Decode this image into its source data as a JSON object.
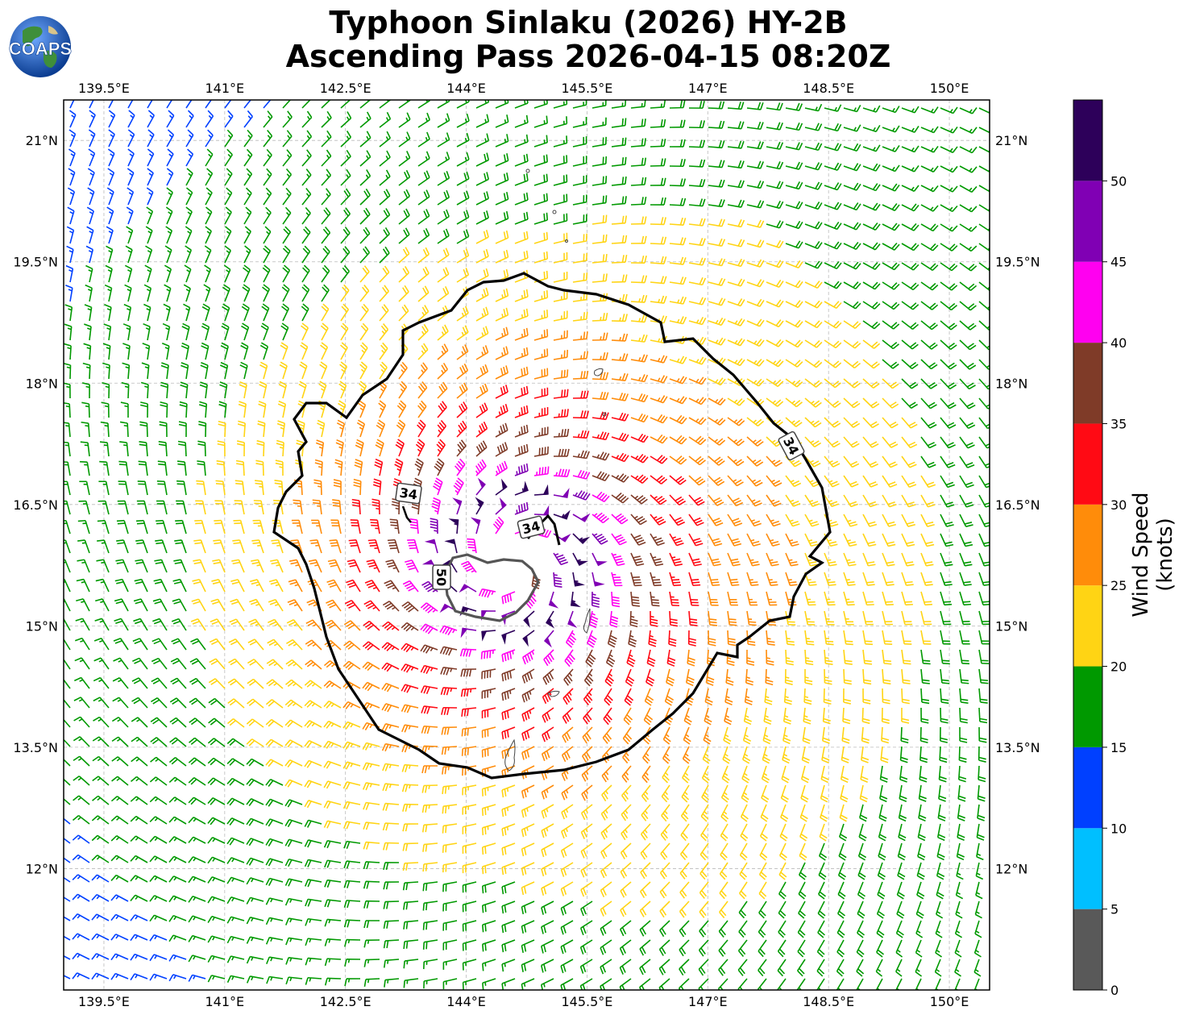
{
  "header": {
    "title_line1": "Typhoon Sinlaku (2026) HY-2B",
    "title_line2": "Ascending Pass 2026-04-15 08:20Z",
    "logo_text": "COAPS"
  },
  "map": {
    "lon_range": [
      139.0,
      150.5
    ],
    "lat_range": [
      10.5,
      21.5
    ],
    "lon_ticks": [
      "139.5°E",
      "141°E",
      "142.5°E",
      "144°E",
      "145.5°E",
      "147°E",
      "148.5°E",
      "150°E"
    ],
    "lon_tick_values": [
      139.5,
      141,
      142.5,
      144,
      145.5,
      147,
      148.5,
      150
    ],
    "lat_ticks": [
      "21°N",
      "19.5°N",
      "18°N",
      "16.5°N",
      "15°N",
      "13.5°N",
      "12°N"
    ],
    "lat_tick_values": [
      21,
      19.5,
      18,
      16.5,
      15,
      13.5,
      12
    ],
    "gridlines": true,
    "storm_center": {
      "lon": 144.6,
      "lat": 15.8
    },
    "contour_labels": [
      "34",
      "34",
      "34",
      "50"
    ]
  },
  "colorbar": {
    "label": "Wind Speed (knots)",
    "tick_labels": [
      "0",
      "5",
      "10",
      "15",
      "20",
      "25",
      "30",
      "35",
      "40",
      "45",
      "50"
    ],
    "bins": [
      {
        "min": 0,
        "max": 5,
        "color": "#595959"
      },
      {
        "min": 5,
        "max": 10,
        "color": "#00bfff"
      },
      {
        "min": 10,
        "max": 15,
        "color": "#0040ff"
      },
      {
        "min": 15,
        "max": 20,
        "color": "#009900"
      },
      {
        "min": 20,
        "max": 25,
        "color": "#ffd414"
      },
      {
        "min": 25,
        "max": 30,
        "color": "#ff8c0a"
      },
      {
        "min": 30,
        "max": 35,
        "color": "#ff0a14"
      },
      {
        "min": 35,
        "max": 40,
        "color": "#7f3b28"
      },
      {
        "min": 40,
        "max": 45,
        "color": "#ff00f0"
      },
      {
        "min": 45,
        "max": 50,
        "color": "#8000b4"
      },
      {
        "min": 50,
        "max": 55,
        "color": "#2d005a"
      }
    ]
  }
}
